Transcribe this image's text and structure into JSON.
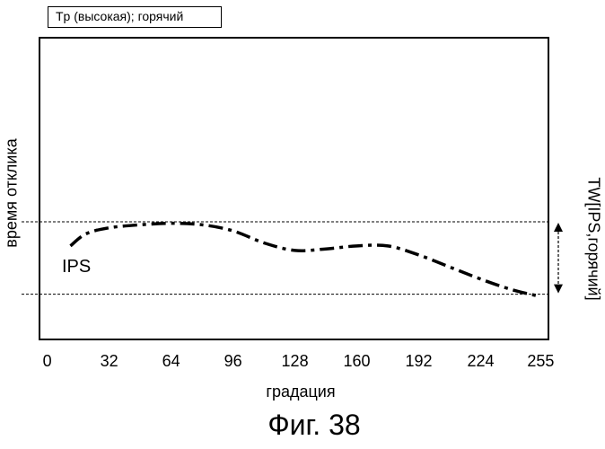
{
  "chart_data": {
    "type": "line",
    "title": "",
    "condition_label": "Tp (высокая); горячий",
    "xlabel": "градация",
    "ylabel": "время отклика",
    "window_label": "TW[IPS,горячий]",
    "figure_caption": "Фиг. 38",
    "x_ticks": [
      "0",
      "32",
      "64",
      "96",
      "128",
      "160",
      "192",
      "224",
      "255"
    ],
    "x_tick_values": [
      0,
      32,
      64,
      96,
      128,
      160,
      192,
      224,
      255
    ],
    "xlim": [
      -4,
      259
    ],
    "ylim": [
      0,
      100
    ],
    "reference_lines": [
      {
        "name": "upper",
        "y": 39
      },
      {
        "name": "lower",
        "y": 15
      }
    ],
    "series": [
      {
        "name": "IPS",
        "x": [
          12,
          20,
          32,
          48,
          64,
          80,
          96,
          112,
          128,
          144,
          160,
          176,
          192,
          208,
          224,
          240,
          253
        ],
        "y": [
          31,
          35,
          37,
          38,
          38.5,
          38,
          36,
          32,
          29.5,
          30,
          31,
          31,
          28,
          24,
          20,
          16.5,
          14.5
        ]
      }
    ]
  }
}
